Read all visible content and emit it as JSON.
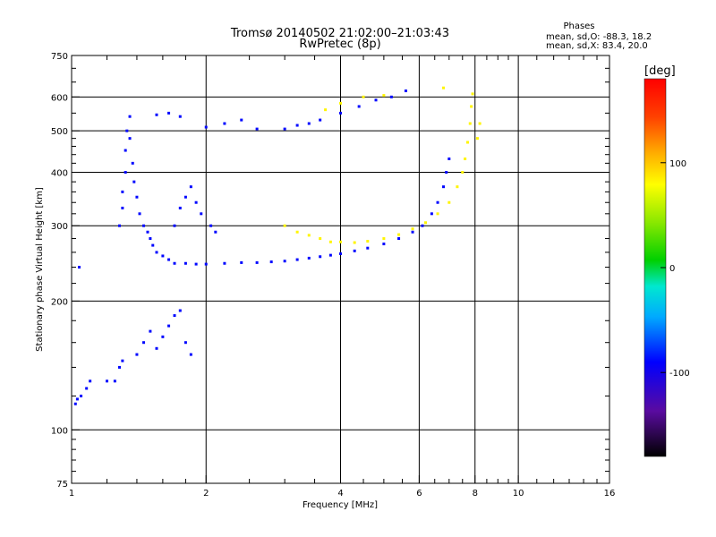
{
  "chart_data": {
    "type": "scatter",
    "title": "Tromsø 20140502 21:02:00–21:03:43",
    "subtitle": "RwPretec (8p)",
    "xlabel": "Frequency [MHz]",
    "ylabel": "Stationary phase Virtual Height [km]",
    "x_scale": "log",
    "y_scale": "log",
    "xlim": [
      1,
      16
    ],
    "ylim": [
      75,
      750
    ],
    "x_ticks": [
      1,
      2,
      4,
      6,
      8,
      10,
      16
    ],
    "x_tick_labels": [
      "1",
      "2",
      "4",
      "6",
      "8",
      "10",
      "16"
    ],
    "y_ticks": [
      75,
      100,
      200,
      300,
      400,
      500,
      600,
      750
    ],
    "y_tick_labels": [
      "75",
      "100",
      "200",
      "300",
      "400",
      "500",
      "600",
      "750"
    ],
    "grid": true,
    "stats": {
      "heading": "Phases",
      "line_o": "mean, sd,O:  -88.3, 18.2",
      "line_x": "mean, sd,X:  83.4, 20.0"
    },
    "colorbar": {
      "label": "[deg]",
      "range": [
        -180,
        180
      ],
      "ticks": [
        -100,
        0,
        100
      ],
      "tick_labels": [
        "-100",
        "0",
        "100"
      ],
      "colormap": "rainbow"
    },
    "series": [
      {
        "mode": "O",
        "phase_mean": -88.3,
        "points": [
          [
            1.02,
            115
          ],
          [
            1.03,
            118
          ],
          [
            1.05,
            120
          ],
          [
            1.08,
            125
          ],
          [
            1.1,
            130
          ],
          [
            1.04,
            240
          ],
          [
            1.28,
            300
          ],
          [
            1.3,
            330
          ],
          [
            1.3,
            360
          ],
          [
            1.32,
            400
          ],
          [
            1.32,
            450
          ],
          [
            1.33,
            500
          ],
          [
            1.35,
            540
          ],
          [
            1.35,
            480
          ],
          [
            1.37,
            420
          ],
          [
            1.38,
            380
          ],
          [
            1.4,
            350
          ],
          [
            1.42,
            320
          ],
          [
            1.45,
            300
          ],
          [
            1.48,
            290
          ],
          [
            1.5,
            280
          ],
          [
            1.52,
            270
          ],
          [
            1.55,
            260
          ],
          [
            1.6,
            255
          ],
          [
            1.65,
            250
          ],
          [
            1.7,
            245
          ],
          [
            1.8,
            245
          ],
          [
            1.9,
            244
          ],
          [
            2.0,
            244
          ],
          [
            2.2,
            245
          ],
          [
            2.4,
            246
          ],
          [
            2.6,
            246
          ],
          [
            2.8,
            247
          ],
          [
            3.0,
            248
          ],
          [
            3.2,
            250
          ],
          [
            3.4,
            252
          ],
          [
            3.6,
            254
          ],
          [
            3.8,
            256
          ],
          [
            4.0,
            258
          ],
          [
            4.3,
            262
          ],
          [
            4.6,
            266
          ],
          [
            5.0,
            272
          ],
          [
            5.4,
            280
          ],
          [
            5.8,
            290
          ],
          [
            6.1,
            300
          ],
          [
            6.4,
            320
          ],
          [
            6.6,
            340
          ],
          [
            6.8,
            370
          ],
          [
            6.9,
            400
          ],
          [
            7.0,
            430
          ],
          [
            1.4,
            150
          ],
          [
            1.45,
            160
          ],
          [
            1.5,
            170
          ],
          [
            1.55,
            155
          ],
          [
            1.6,
            165
          ],
          [
            1.65,
            175
          ],
          [
            1.7,
            185
          ],
          [
            1.75,
            190
          ],
          [
            1.8,
            160
          ],
          [
            1.85,
            150
          ],
          [
            1.25,
            130
          ],
          [
            1.28,
            140
          ],
          [
            1.3,
            145
          ],
          [
            1.2,
            130
          ],
          [
            1.7,
            300
          ],
          [
            1.75,
            330
          ],
          [
            1.8,
            350
          ],
          [
            1.85,
            370
          ],
          [
            1.9,
            340
          ],
          [
            1.95,
            320
          ],
          [
            2.05,
            300
          ],
          [
            2.1,
            290
          ],
          [
            1.55,
            545
          ],
          [
            1.65,
            550
          ],
          [
            1.75,
            540
          ],
          [
            2.0,
            510
          ],
          [
            2.2,
            520
          ],
          [
            2.4,
            530
          ],
          [
            2.6,
            505
          ],
          [
            3.0,
            505
          ],
          [
            3.2,
            515
          ],
          [
            3.4,
            520
          ],
          [
            3.6,
            530
          ],
          [
            4.0,
            550
          ],
          [
            4.4,
            570
          ],
          [
            4.8,
            590
          ],
          [
            5.2,
            600
          ],
          [
            5.6,
            620
          ]
        ]
      },
      {
        "mode": "X",
        "phase_mean": 83.4,
        "points": [
          [
            3.0,
            300
          ],
          [
            3.2,
            290
          ],
          [
            3.4,
            285
          ],
          [
            3.6,
            280
          ],
          [
            3.8,
            275
          ],
          [
            4.0,
            275
          ],
          [
            4.3,
            274
          ],
          [
            4.6,
            276
          ],
          [
            5.0,
            280
          ],
          [
            5.4,
            286
          ],
          [
            5.8,
            295
          ],
          [
            6.2,
            305
          ],
          [
            6.6,
            320
          ],
          [
            7.0,
            340
          ],
          [
            7.3,
            370
          ],
          [
            7.5,
            400
          ],
          [
            7.6,
            430
          ],
          [
            7.7,
            470
          ],
          [
            7.8,
            520
          ],
          [
            7.85,
            570
          ],
          [
            7.9,
            610
          ],
          [
            3.7,
            560
          ],
          [
            4.0,
            580
          ],
          [
            4.5,
            600
          ],
          [
            5.0,
            605
          ],
          [
            6.8,
            630
          ],
          [
            8.2,
            520
          ],
          [
            8.1,
            480
          ]
        ]
      }
    ]
  }
}
